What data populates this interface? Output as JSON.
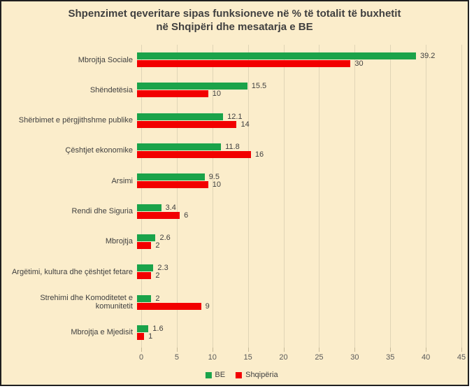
{
  "colors": {
    "background": "#fbedcb",
    "border": "#1f1f1f",
    "series_be": "#1aa34a",
    "series_shqiperia": "#f20000",
    "text_dark": "#404040",
    "axis_text": "#595959",
    "gridline": "#e0d5b6"
  },
  "chart_data": {
    "type": "bar",
    "orientation": "horizontal",
    "title": "Shpenzimet qeveritare sipas funksioneve në % të totalit të buxhetit në Shqipëri dhe mesatarja e BE",
    "categories": [
      "Mbrojtja Sociale",
      "Shëndetësia",
      "Shërbimet e përgjithshme publike",
      "Çështjet ekonomike",
      "Arsimi",
      "Rendi dhe Siguria",
      "Mbrojtja",
      "Argëtimi, kultura dhe çështjet fetare",
      "Strehimi dhe Komoditetet e komunitetit",
      "Mbrojtja e Mjedisit"
    ],
    "series": [
      {
        "name": "BE",
        "color": "#1aa34a",
        "values": [
          39.2,
          15.5,
          12.1,
          11.8,
          9.5,
          3.4,
          2.6,
          2.3,
          2,
          1.6
        ],
        "labels": [
          "39.2",
          "15.5",
          "12.1",
          "11.8",
          "9.5",
          "3.4",
          "2.6",
          "2.3",
          "2",
          "1.6"
        ]
      },
      {
        "name": "Shqipëria",
        "color": "#f20000",
        "values": [
          30,
          10,
          14,
          16,
          10,
          6,
          2,
          2,
          9,
          1
        ],
        "labels": [
          "30",
          "10",
          "14",
          "16",
          "10",
          "6",
          "2",
          "2",
          "9",
          "1"
        ]
      }
    ],
    "xlim": [
      0,
      45
    ],
    "x_ticks": [
      "0",
      "5",
      "10",
      "15",
      "20",
      "25",
      "30",
      "35",
      "40",
      "45"
    ],
    "grid": true,
    "legend_position": "bottom"
  }
}
